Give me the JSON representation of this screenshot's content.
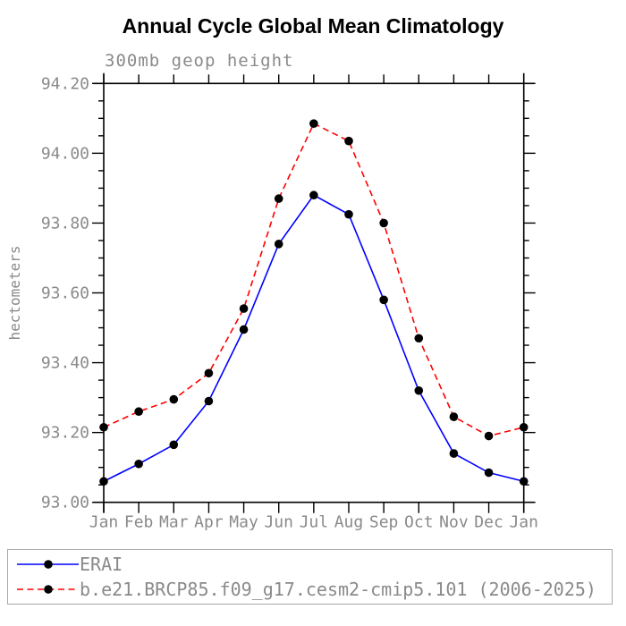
{
  "page": {
    "title": "Annual Cycle Global Mean Climatology",
    "subtitle": "300mb geop height"
  },
  "chart_data": {
    "type": "line",
    "title": "Annual Cycle Global Mean Climatology",
    "subtitle": "300mb geop height",
    "xlabel": "",
    "ylabel": "hectometers",
    "categories": [
      "Jan",
      "Feb",
      "Mar",
      "Apr",
      "May",
      "Jun",
      "Jul",
      "Aug",
      "Sep",
      "Oct",
      "Nov",
      "Dec",
      "Jan"
    ],
    "ylim": [
      93.0,
      94.2
    ],
    "ytick_major": 0.2,
    "ytick_minor": 0.05,
    "ytick_decimals": 2,
    "grid": false,
    "legend_position": "bottom",
    "series": [
      {
        "name": "ERAI",
        "line_style": "solid",
        "color": "#0000ff",
        "marker": "circle",
        "marker_color": "#000000",
        "values": [
          93.06,
          93.11,
          93.165,
          93.29,
          93.495,
          93.74,
          93.88,
          93.825,
          93.58,
          93.32,
          93.14,
          93.085,
          93.06
        ]
      },
      {
        "name": "b.e21.BRCP85.f09_g17.cesm2-cmip5.101 (2006-2025)",
        "line_style": "dashed",
        "color": "#ff0000",
        "marker": "circle",
        "marker_color": "#000000",
        "values": [
          93.215,
          93.26,
          93.295,
          93.37,
          93.555,
          93.87,
          94.085,
          94.035,
          93.8,
          93.47,
          93.245,
          93.19,
          93.215
        ]
      }
    ]
  },
  "colors": {
    "axis": "#000000",
    "tick_label_gray": "#8a8a8a",
    "title_black": "#000000",
    "legend_border": "#a9a9a9",
    "series_blue": "#0000ff",
    "series_red": "#ff0000",
    "marker_black": "#000000"
  }
}
